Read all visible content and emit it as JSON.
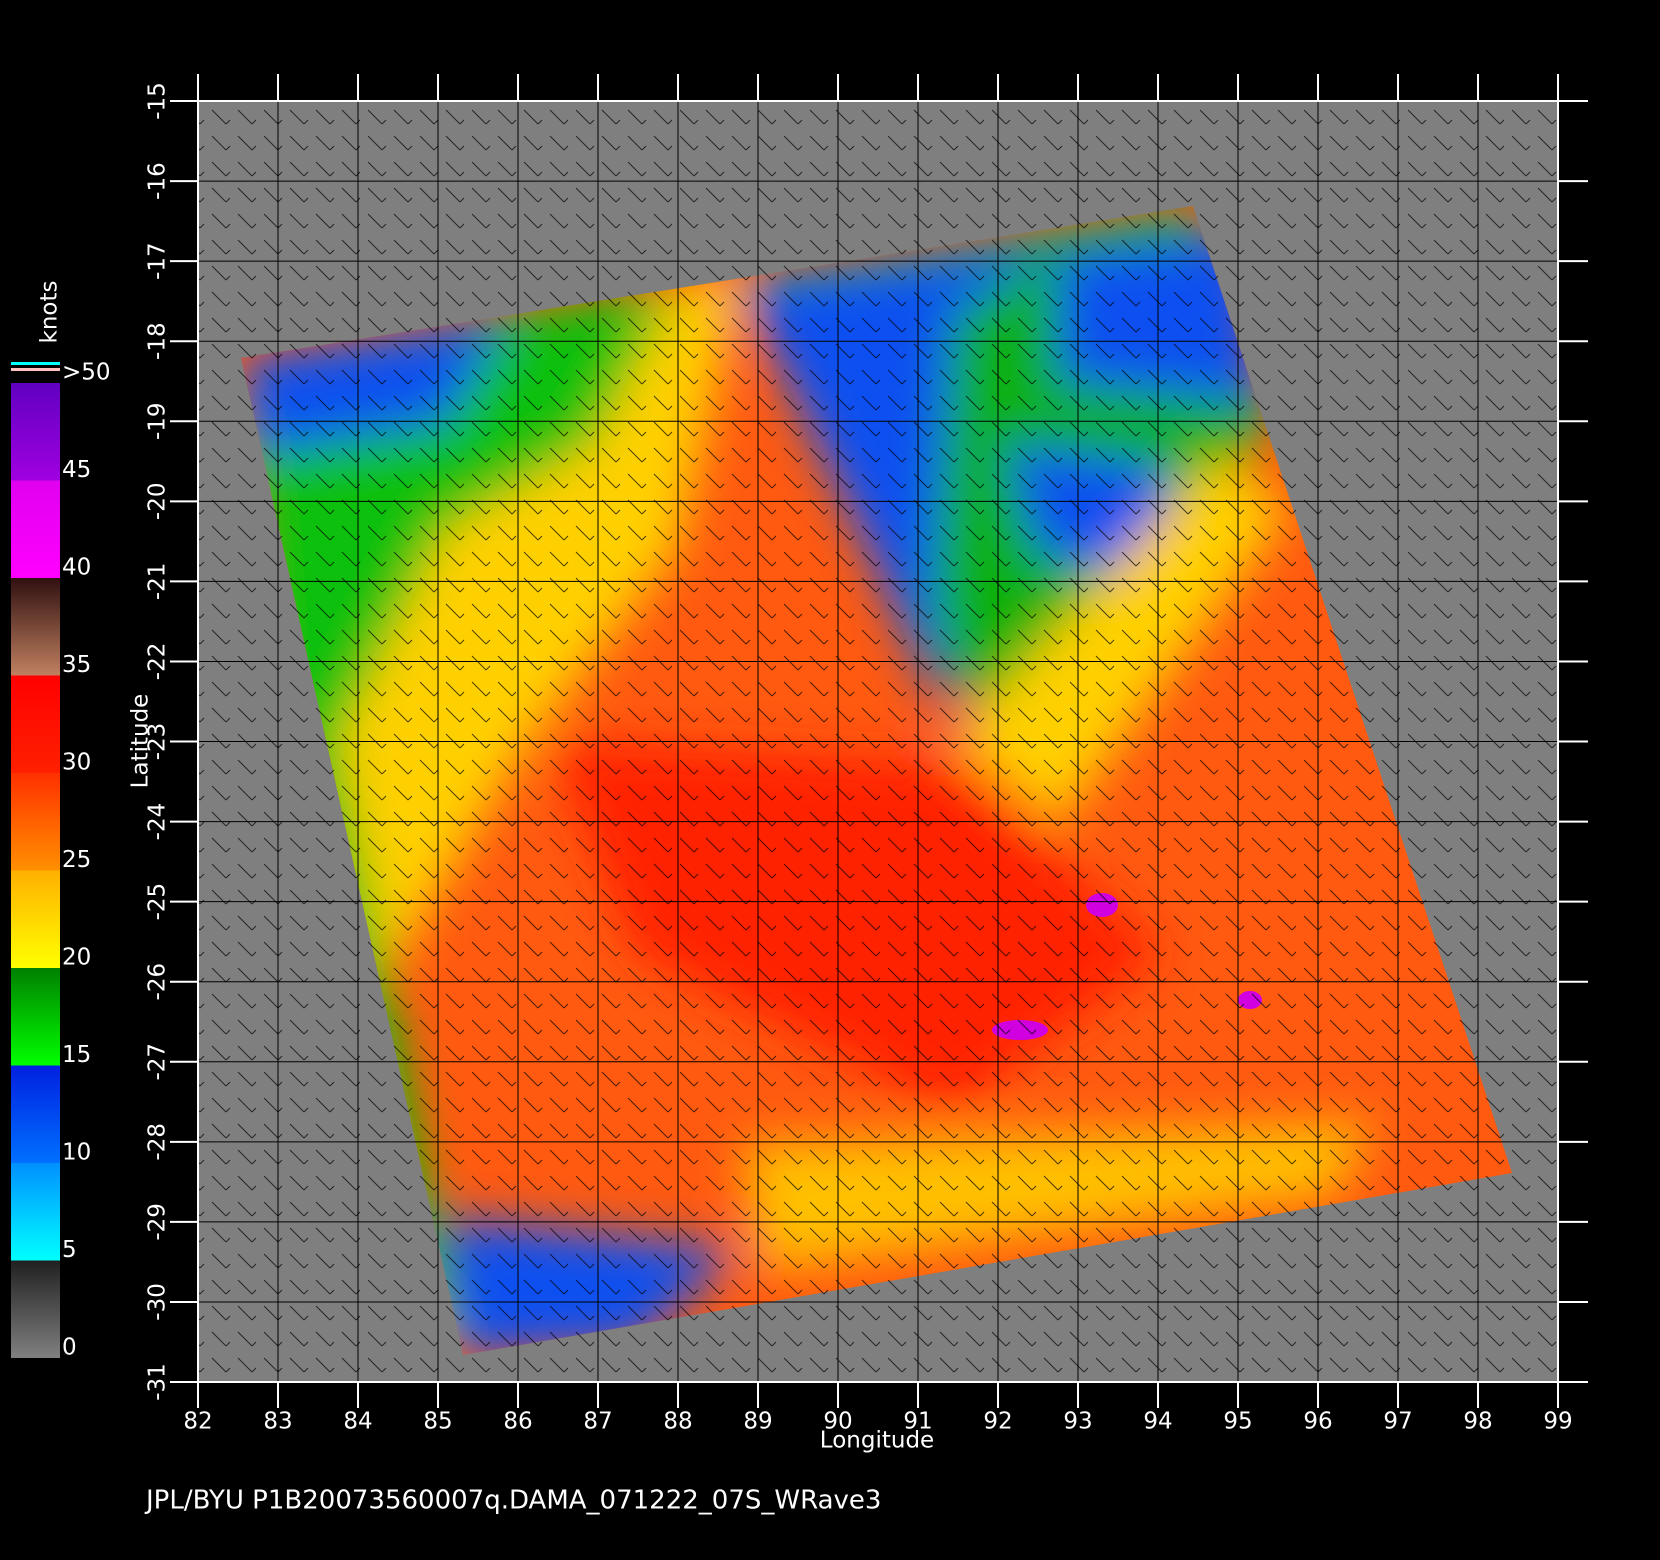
{
  "chart_data": {
    "type": "map",
    "xlabel": "Longitude",
    "ylabel": "Latitude",
    "xlim": [
      82,
      99
    ],
    "ylim": [
      -31,
      -15
    ],
    "xticks": [
      82,
      83,
      84,
      85,
      86,
      87,
      88,
      89,
      90,
      91,
      92,
      93,
      94,
      95,
      96,
      97,
      98,
      99
    ],
    "yticks": [
      -15,
      -16,
      -17,
      -18,
      -19,
      -20,
      -21,
      -22,
      -23,
      -24,
      -25,
      -26,
      -27,
      -28,
      -29,
      -30,
      -31
    ],
    "grid": true,
    "colorbar": {
      "label": "knots",
      "lim": [
        0,
        50
      ],
      "ticks": [
        0,
        5,
        10,
        15,
        20,
        25,
        30,
        35,
        40,
        45,
        {
          "value": 50,
          "label": ">50"
        }
      ],
      "colors": [
        [
          "#808080",
          "#202020"
        ],
        [
          "#00ffff",
          "#0090ff"
        ],
        [
          "#0070ff",
          "#0020e0"
        ],
        [
          "#00ff00",
          "#008000"
        ],
        [
          "#ffff00",
          "#ffb000"
        ],
        [
          "#ff9000",
          "#ff3000"
        ],
        [
          "#ff2000",
          "#ff0000"
        ],
        [
          "#c08060",
          "#301010"
        ],
        [
          "#ff00ff",
          "#e000f0"
        ],
        [
          "#a000e0",
          "#6000c0"
        ]
      ]
    },
    "footer": "JPL/BYU  P1B20073560007q.DAMA_071222_07S_WRave3"
  }
}
